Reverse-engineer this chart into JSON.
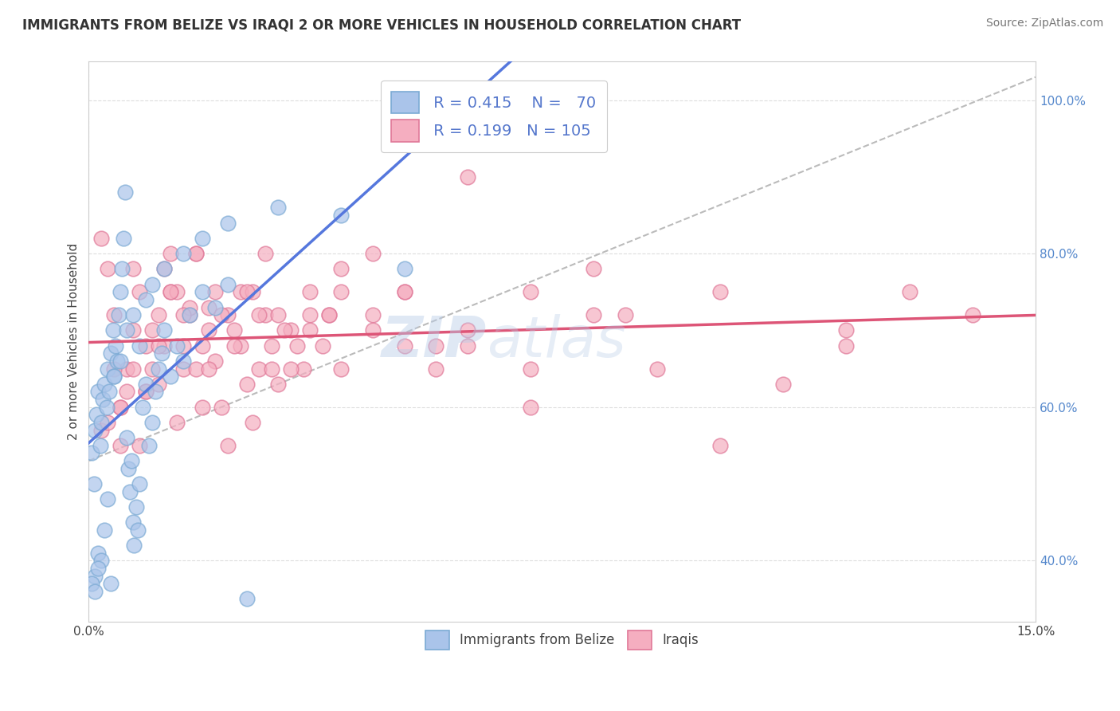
{
  "title": "IMMIGRANTS FROM BELIZE VS IRAQI 2 OR MORE VEHICLES IN HOUSEHOLD CORRELATION CHART",
  "source": "Source: ZipAtlas.com",
  "ylabel": "2 or more Vehicles in Household",
  "xlim": [
    0.0,
    15.0
  ],
  "ylim": [
    32.0,
    105.0
  ],
  "ytick_values": [
    40.0,
    60.0,
    80.0,
    100.0
  ],
  "xtick_values": [
    0.0,
    15.0
  ],
  "legend_labels": [
    "Immigrants from Belize",
    "Iraqis"
  ],
  "blue_color": "#aac4ea",
  "blue_edge": "#7baad4",
  "pink_color": "#f5aec0",
  "pink_edge": "#e07898",
  "trend_blue": "#5577dd",
  "trend_pink": "#dd5577",
  "trend_gray": "#bbbbbb",
  "R_blue": 0.415,
  "N_blue": 70,
  "R_pink": 0.199,
  "N_pink": 105,
  "watermark": "ZIPatlas",
  "background": "#ffffff",
  "grid_color": "#dddddd",
  "belize_x": [
    0.05,
    0.08,
    0.1,
    0.12,
    0.15,
    0.18,
    0.2,
    0.22,
    0.25,
    0.28,
    0.3,
    0.32,
    0.35,
    0.38,
    0.4,
    0.42,
    0.45,
    0.48,
    0.5,
    0.52,
    0.55,
    0.58,
    0.6,
    0.62,
    0.65,
    0.68,
    0.7,
    0.72,
    0.75,
    0.78,
    0.8,
    0.85,
    0.9,
    0.95,
    1.0,
    1.05,
    1.1,
    1.15,
    1.2,
    1.3,
    1.4,
    1.5,
    1.6,
    1.8,
    2.0,
    2.2,
    2.5,
    0.1,
    0.15,
    0.2,
    0.25,
    0.3,
    0.35,
    0.4,
    0.5,
    0.6,
    0.7,
    0.8,
    0.9,
    1.0,
    1.2,
    1.5,
    1.8,
    2.2,
    3.0,
    4.0,
    5.0,
    0.05,
    0.1,
    0.15
  ],
  "belize_y": [
    54,
    50,
    57,
    59,
    62,
    55,
    58,
    61,
    63,
    60,
    65,
    62,
    67,
    70,
    64,
    68,
    66,
    72,
    75,
    78,
    82,
    88,
    56,
    52,
    49,
    53,
    45,
    42,
    47,
    44,
    50,
    60,
    63,
    55,
    58,
    62,
    65,
    67,
    70,
    64,
    68,
    66,
    72,
    75,
    73,
    76,
    35,
    38,
    41,
    40,
    44,
    48,
    37,
    64,
    66,
    70,
    72,
    68,
    74,
    76,
    78,
    80,
    82,
    84,
    86,
    85,
    78,
    37,
    36,
    39
  ],
  "iraqi_x": [
    0.2,
    0.4,
    0.5,
    0.6,
    0.7,
    0.8,
    0.9,
    1.0,
    1.1,
    1.2,
    1.3,
    1.4,
    1.5,
    1.6,
    1.7,
    1.8,
    1.9,
    2.0,
    2.1,
    2.2,
    2.3,
    2.4,
    2.5,
    2.6,
    2.7,
    2.8,
    2.9,
    3.0,
    3.2,
    3.4,
    3.5,
    3.7,
    4.0,
    4.5,
    5.0,
    5.5,
    6.0,
    7.0,
    8.0,
    0.2,
    0.3,
    0.4,
    0.5,
    0.6,
    0.7,
    0.8,
    0.9,
    1.0,
    1.1,
    1.2,
    1.3,
    1.4,
    1.5,
    1.6,
    1.7,
    1.8,
    1.9,
    2.0,
    2.2,
    2.4,
    2.6,
    2.8,
    3.0,
    3.2,
    3.5,
    3.8,
    4.0,
    4.5,
    5.0,
    6.0,
    7.0,
    8.0,
    9.0,
    10.0,
    11.0,
    12.0,
    13.0,
    14.0,
    0.3,
    0.5,
    0.7,
    0.9,
    1.1,
    1.3,
    1.5,
    1.7,
    1.9,
    2.1,
    2.3,
    2.5,
    2.7,
    2.9,
    3.1,
    3.3,
    3.5,
    3.8,
    4.0,
    4.5,
    5.0,
    5.5,
    6.0,
    7.0,
    8.5,
    10.0,
    12.0
  ],
  "iraqi_y": [
    57,
    72,
    60,
    65,
    78,
    55,
    62,
    70,
    63,
    68,
    75,
    58,
    65,
    72,
    80,
    68,
    73,
    66,
    60,
    55,
    70,
    75,
    63,
    58,
    65,
    72,
    68,
    63,
    70,
    65,
    72,
    68,
    75,
    72,
    68,
    65,
    70,
    75,
    72,
    82,
    78,
    65,
    55,
    62,
    70,
    75,
    68,
    65,
    72,
    78,
    80,
    75,
    68,
    73,
    65,
    60,
    70,
    75,
    72,
    68,
    75,
    80,
    72,
    65,
    70,
    72,
    65,
    70,
    75,
    68,
    60,
    78,
    65,
    55,
    63,
    70,
    75,
    72,
    58,
    60,
    65,
    62,
    68,
    75,
    72,
    80,
    65,
    72,
    68,
    75,
    72,
    65,
    70,
    68,
    75,
    72,
    78,
    80,
    75,
    68,
    90,
    65,
    72,
    75,
    68
  ]
}
